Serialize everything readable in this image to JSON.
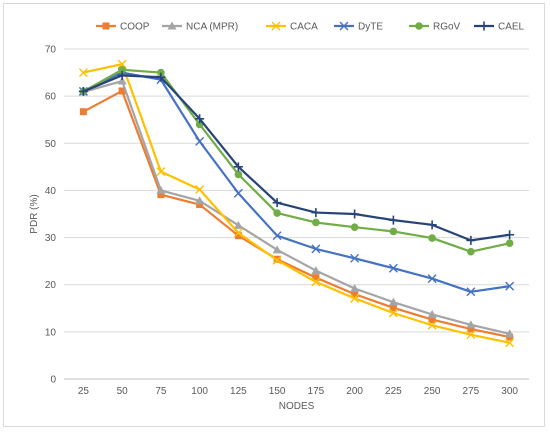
{
  "chart_data": {
    "type": "line",
    "title": "",
    "xlabel": "NODES",
    "ylabel": "PDR (%)",
    "categories": [
      "25",
      "50",
      "75",
      "100",
      "125",
      "150",
      "175",
      "200",
      "225",
      "250",
      "275",
      "300"
    ],
    "ylim": [
      0,
      70
    ],
    "yticks": [
      0,
      10,
      20,
      30,
      40,
      50,
      60,
      70
    ],
    "grid": "horizontal",
    "legend": "top",
    "series": [
      {
        "name": "COOP",
        "color": "#ED7D31",
        "marker": "square",
        "values": [
          56.7,
          61.1,
          39.1,
          37.0,
          30.4,
          25.4,
          21.5,
          18.0,
          15.1,
          12.6,
          10.6,
          8.9
        ]
      },
      {
        "name": "NCA (MPR)",
        "color": "#A5A5A5",
        "marker": "triangle",
        "values": [
          60.9,
          63.2,
          40.0,
          37.8,
          32.6,
          27.4,
          23.0,
          19.2,
          16.3,
          13.7,
          11.5,
          9.6
        ]
      },
      {
        "name": "CACA",
        "color": "#FFC000",
        "marker": "x",
        "values": [
          65.0,
          66.8,
          44.0,
          40.2,
          31.0,
          25.2,
          20.6,
          17.1,
          14.0,
          11.4,
          9.4,
          7.7
        ]
      },
      {
        "name": "DyTE",
        "color": "#4472C4",
        "marker": "x",
        "values": [
          61.0,
          65.0,
          63.5,
          50.4,
          39.4,
          30.4,
          27.6,
          25.6,
          23.5,
          21.3,
          18.5,
          19.7
        ]
      },
      {
        "name": "RGoV",
        "color": "#70AD47",
        "marker": "circle",
        "values": [
          61.0,
          65.6,
          65.0,
          54.0,
          43.4,
          35.2,
          33.2,
          32.2,
          31.3,
          29.9,
          27.0,
          28.8
        ]
      },
      {
        "name": "CAEL",
        "color": "#264478",
        "marker": "plus",
        "values": [
          61.0,
          64.4,
          64.0,
          55.2,
          45.0,
          37.4,
          35.3,
          35.0,
          33.7,
          32.7,
          29.4,
          30.6
        ]
      }
    ]
  }
}
